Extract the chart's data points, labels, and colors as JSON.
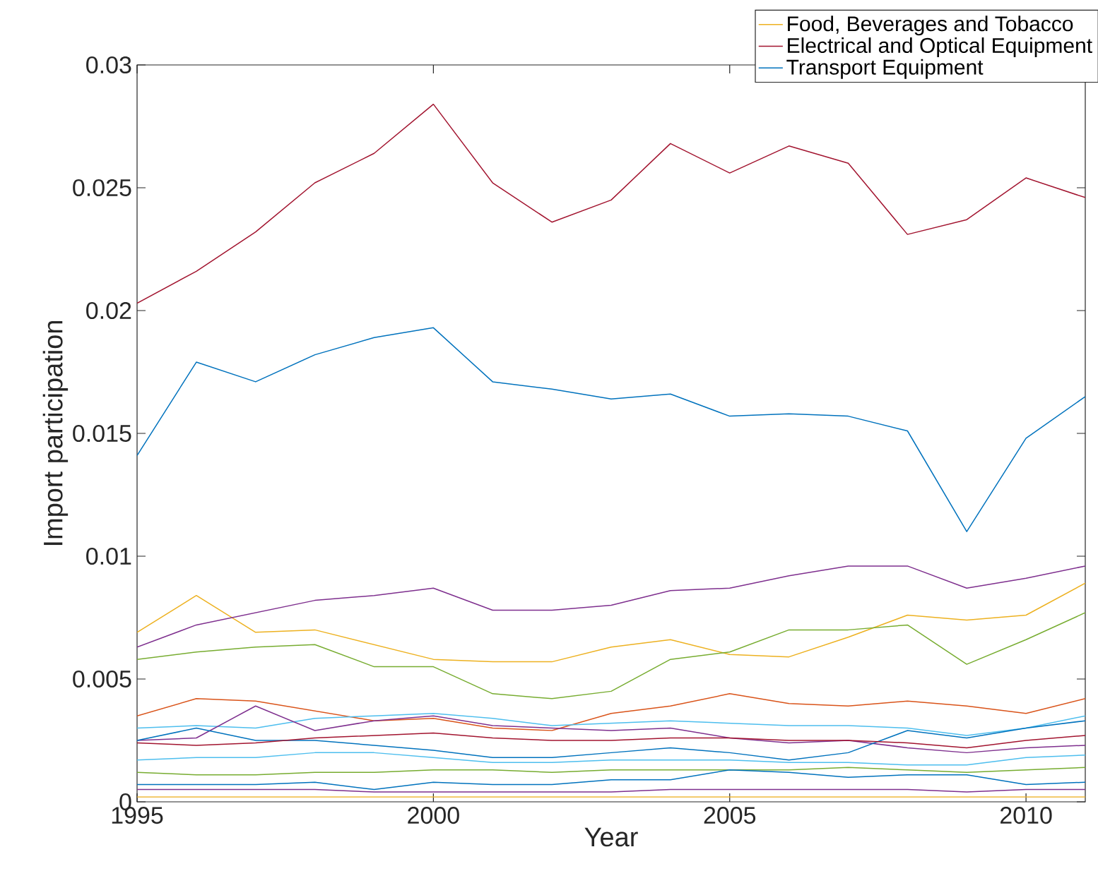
{
  "chart_data": {
    "type": "line",
    "xlabel": "Year",
    "ylabel": "Import participation",
    "x": [
      1995,
      1996,
      1997,
      1998,
      1999,
      2000,
      2001,
      2002,
      2003,
      2004,
      2005,
      2006,
      2007,
      2008,
      2009,
      2010,
      2011
    ],
    "xlim": [
      1995,
      2011
    ],
    "ylim": [
      0,
      0.03
    ],
    "xticks": [
      1995,
      2000,
      2005,
      2010
    ],
    "yticks": [
      0,
      0.005,
      0.01,
      0.015,
      0.02,
      0.025,
      0.03
    ],
    "grid": false,
    "legend": "top right",
    "line_style": "solid",
    "marker": "none",
    "series": [
      {
        "name": "Food, Beverages and Tobacco",
        "color": "#edb120",
        "values": [
          0.0069,
          0.0084,
          0.0069,
          0.007,
          0.0064,
          0.0058,
          0.0057,
          0.0057,
          0.0063,
          0.0066,
          0.006,
          0.0059,
          0.0067,
          0.0076,
          0.0074,
          0.0076,
          0.0089
        ]
      },
      {
        "name": "Electrical and Optical Equipment",
        "color": "#a2142f",
        "values": [
          0.0203,
          0.0216,
          0.0232,
          0.0252,
          0.0264,
          0.0284,
          0.0252,
          0.0236,
          0.0245,
          0.0268,
          0.0256,
          0.0267,
          0.026,
          0.0231,
          0.0237,
          0.0254,
          0.0246
        ]
      },
      {
        "name": "Transport Equipment",
        "color": "#0072bd",
        "values": [
          0.0141,
          0.0179,
          0.0171,
          0.0182,
          0.0189,
          0.0193,
          0.0171,
          0.0168,
          0.0164,
          0.0166,
          0.0157,
          0.0158,
          0.0157,
          0.0151,
          0.011,
          0.0148,
          0.0165
        ]
      },
      {
        "color": "#7e2f8e",
        "values": [
          0.0063,
          0.0072,
          0.0077,
          0.0082,
          0.0084,
          0.0087,
          0.0078,
          0.0078,
          0.008,
          0.0086,
          0.0087,
          0.0092,
          0.0096,
          0.0096,
          0.0087,
          0.0091,
          0.0096
        ]
      },
      {
        "color": "#77ac30",
        "values": [
          0.0058,
          0.0061,
          0.0063,
          0.0064,
          0.0055,
          0.0055,
          0.0044,
          0.0042,
          0.0045,
          0.0058,
          0.0061,
          0.007,
          0.007,
          0.0072,
          0.0056,
          0.0066,
          0.0077
        ]
      },
      {
        "color": "#d95319",
        "values": [
          0.0035,
          0.0042,
          0.0041,
          0.0037,
          0.0033,
          0.0034,
          0.003,
          0.0029,
          0.0036,
          0.0039,
          0.0044,
          0.004,
          0.0039,
          0.0041,
          0.0039,
          0.0036,
          0.0042
        ]
      },
      {
        "color": "#4dbeee",
        "values": [
          0.003,
          0.0031,
          0.003,
          0.0034,
          0.0035,
          0.0036,
          0.0034,
          0.0031,
          0.0032,
          0.0033,
          0.0032,
          0.0031,
          0.0031,
          0.003,
          0.0027,
          0.003,
          0.0035
        ]
      },
      {
        "color": "#7e2f8e",
        "values": [
          0.0025,
          0.0026,
          0.0039,
          0.0029,
          0.0033,
          0.0035,
          0.0031,
          0.003,
          0.0029,
          0.003,
          0.0026,
          0.0024,
          0.0025,
          0.0022,
          0.002,
          0.0022,
          0.0023
        ]
      },
      {
        "color": "#0072bd",
        "values": [
          0.0025,
          0.003,
          0.0025,
          0.0025,
          0.0023,
          0.0021,
          0.0018,
          0.0018,
          0.002,
          0.0022,
          0.002,
          0.0017,
          0.002,
          0.0029,
          0.0026,
          0.003,
          0.0033
        ]
      },
      {
        "color": "#a2142f",
        "values": [
          0.0024,
          0.0023,
          0.0024,
          0.0026,
          0.0027,
          0.0028,
          0.0026,
          0.0025,
          0.0025,
          0.0026,
          0.0026,
          0.0025,
          0.0025,
          0.0024,
          0.0022,
          0.0025,
          0.0027
        ]
      },
      {
        "color": "#4dbeee",
        "values": [
          0.0017,
          0.0018,
          0.0018,
          0.002,
          0.002,
          0.0018,
          0.0016,
          0.0016,
          0.0017,
          0.0017,
          0.0017,
          0.0016,
          0.0016,
          0.0015,
          0.0015,
          0.0018,
          0.0019
        ]
      },
      {
        "color": "#77ac30",
        "values": [
          0.0012,
          0.0011,
          0.0011,
          0.0012,
          0.0012,
          0.0013,
          0.0013,
          0.0012,
          0.0013,
          0.0013,
          0.0013,
          0.0013,
          0.0014,
          0.0013,
          0.0012,
          0.0013,
          0.0014
        ]
      },
      {
        "color": "#0072bd",
        "values": [
          0.0007,
          0.0007,
          0.0007,
          0.0008,
          0.0005,
          0.0008,
          0.0007,
          0.0007,
          0.0009,
          0.0009,
          0.0013,
          0.0012,
          0.001,
          0.0011,
          0.0011,
          0.0007,
          0.0008
        ]
      },
      {
        "color": "#7e2f8e",
        "values": [
          0.0005,
          0.0005,
          0.0005,
          0.0005,
          0.0004,
          0.0004,
          0.0004,
          0.0004,
          0.0004,
          0.0005,
          0.0005,
          0.0005,
          0.0005,
          0.0005,
          0.0004,
          0.0005,
          0.0005
        ]
      },
      {
        "color": "#edb120",
        "values": [
          0.0002,
          0.0002,
          0.0002,
          0.0002,
          0.0002,
          0.0002,
          0.0002,
          0.0002,
          0.0002,
          0.0002,
          0.0002,
          0.0002,
          0.0002,
          0.0002,
          0.0002,
          0.0002,
          0.0002
        ]
      }
    ]
  }
}
